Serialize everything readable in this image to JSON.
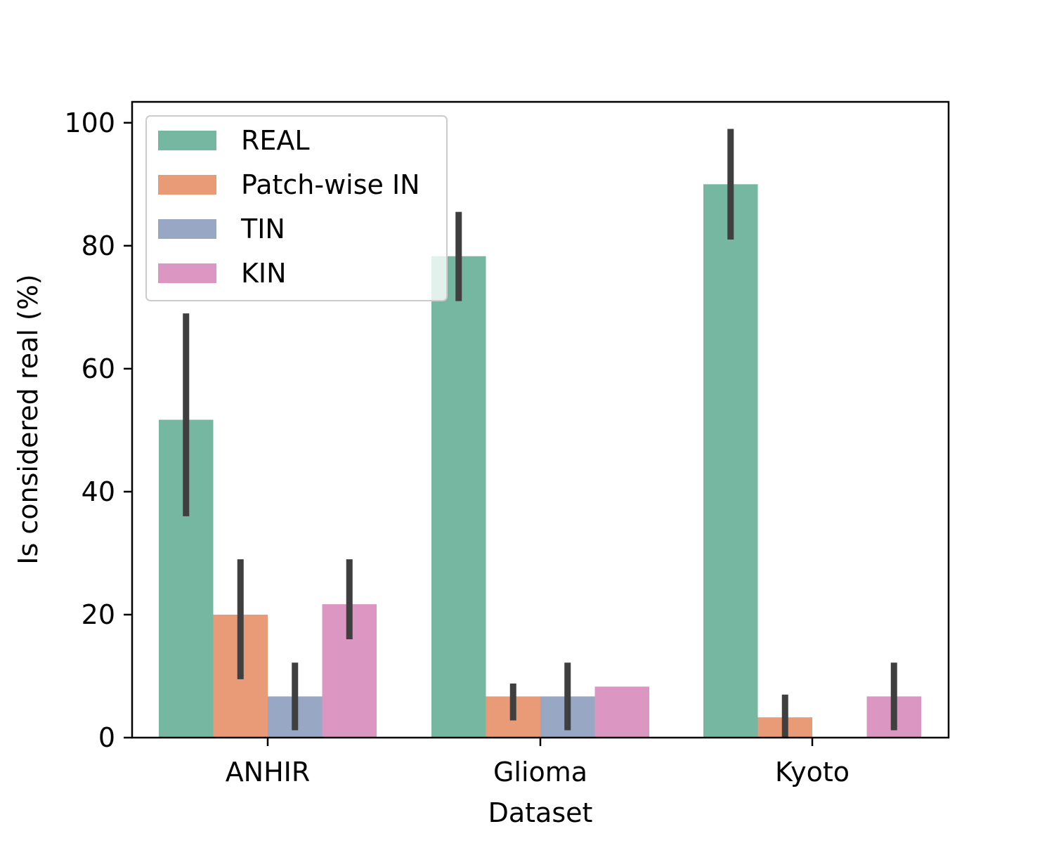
{
  "chart_data": {
    "type": "bar",
    "title": "",
    "xlabel": "Dataset",
    "ylabel": "Is considered real (%)",
    "categories": [
      "ANHIR",
      "Glioma",
      "Kyoto"
    ],
    "ylim": [
      0,
      103.4
    ],
    "yticks": [
      0,
      20,
      40,
      60,
      80,
      100
    ],
    "grid": false,
    "legend_position": "top-left",
    "series": [
      {
        "name": "REAL",
        "color": "#75b7a0",
        "values": [
          51.7,
          78.3,
          90.0
        ],
        "err_low": [
          36.0,
          71.0,
          81.0
        ],
        "err_high": [
          69.0,
          85.5,
          99.0
        ]
      },
      {
        "name": "Patch-wise IN",
        "color": "#e99b78",
        "values": [
          20.0,
          6.7,
          3.3
        ],
        "err_low": [
          9.5,
          2.8,
          0.0
        ],
        "err_high": [
          29.0,
          8.8,
          7.0
        ]
      },
      {
        "name": "TIN",
        "color": "#97a7c4",
        "values": [
          6.7,
          6.7,
          0.0
        ],
        "err_low": [
          1.2,
          1.2,
          null
        ],
        "err_high": [
          12.2,
          12.2,
          null
        ]
      },
      {
        "name": "KIN",
        "color": "#db97c1",
        "values": [
          21.7,
          8.3,
          6.7
        ],
        "err_low": [
          16.0,
          null,
          1.2
        ],
        "err_high": [
          29.0,
          null,
          12.2
        ]
      }
    ]
  }
}
